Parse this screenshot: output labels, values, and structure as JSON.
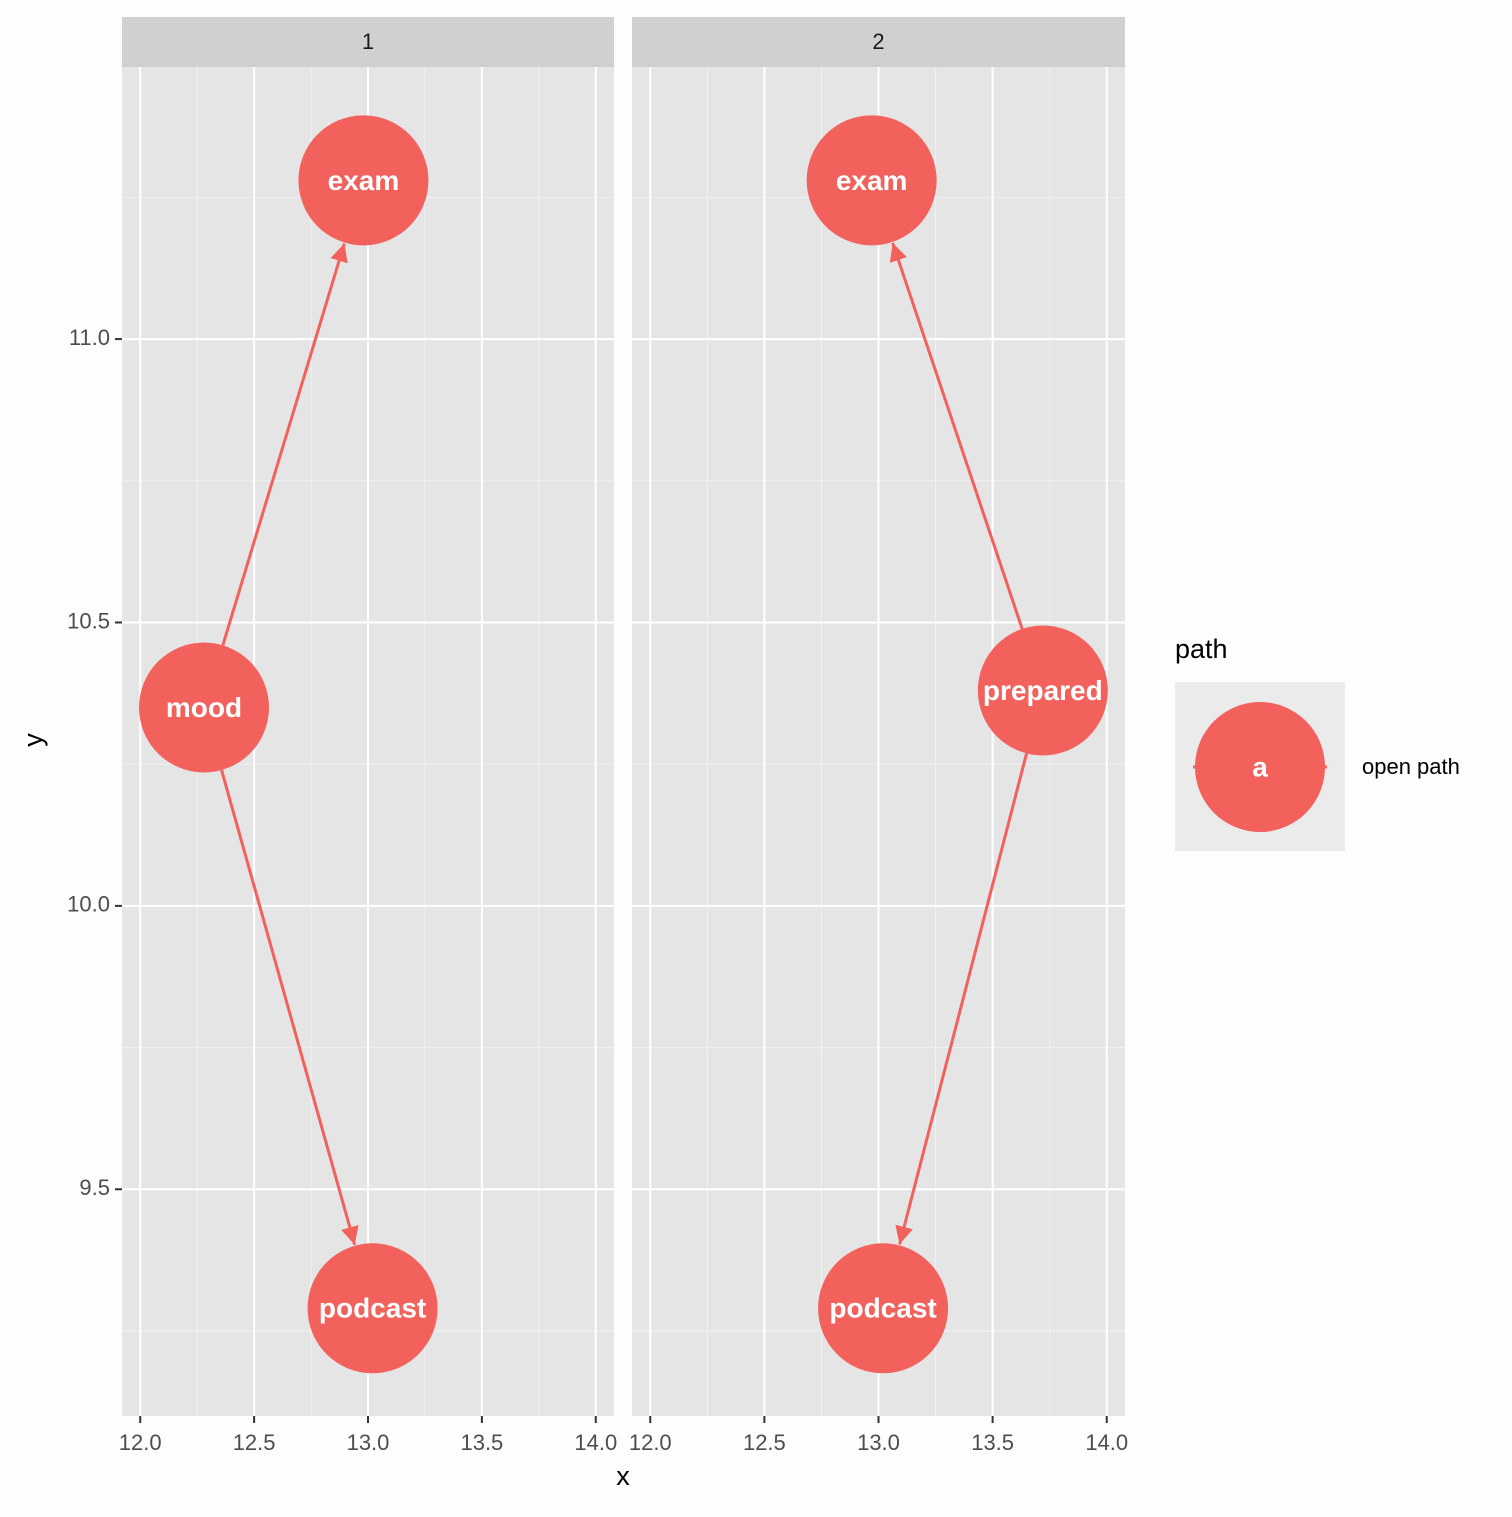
{
  "chart_data": {
    "type": "dag",
    "x_label": "x",
    "y_label": "y",
    "xlim": [
      11.92,
      14.08
    ],
    "ylim": [
      9.1,
      11.48
    ],
    "xticks": [
      {
        "value": 12,
        "label": "12.0"
      },
      12.5,
      {
        "value": 13,
        "label": "13.0"
      },
      13.5,
      {
        "value": 14,
        "label": "14.0"
      }
    ],
    "yticks": [
      {
        "value": 9.5,
        "label": "9.5"
      },
      {
        "value": 10,
        "label": "10.0"
      },
      {
        "value": 10.5,
        "label": "10.5"
      },
      {
        "value": 11,
        "label": "11.0"
      }
    ],
    "x_minor_ticks": [
      12.25,
      12.75,
      13.25,
      13.75
    ],
    "y_minor_ticks": [
      9.25,
      9.75,
      10.25,
      10.75,
      11.25
    ],
    "grid": true,
    "legend": {
      "title": "path",
      "key_label": "a",
      "position": "right"
    },
    "series": [
      {
        "name": "open path",
        "color": "#f3615c"
      }
    ],
    "panels": [
      {
        "strip": "1",
        "nodes": [
          {
            "name": "exam",
            "x": 12.98,
            "y": 11.28
          },
          {
            "name": "mood",
            "x": 12.28,
            "y": 10.35
          },
          {
            "name": "podcast",
            "x": 13.02,
            "y": 9.29
          }
        ],
        "edges": [
          {
            "from": "mood",
            "to": "exam"
          },
          {
            "from": "mood",
            "to": "podcast"
          }
        ]
      },
      {
        "strip": "2",
        "nodes": [
          {
            "name": "exam",
            "x": 12.97,
            "y": 11.28
          },
          {
            "name": "prepared",
            "x": 13.72,
            "y": 10.38
          },
          {
            "name": "podcast",
            "x": 13.02,
            "y": 9.29
          }
        ],
        "edges": [
          {
            "from": "prepared",
            "to": "exam"
          },
          {
            "from": "prepared",
            "to": "podcast"
          }
        ]
      }
    ]
  }
}
